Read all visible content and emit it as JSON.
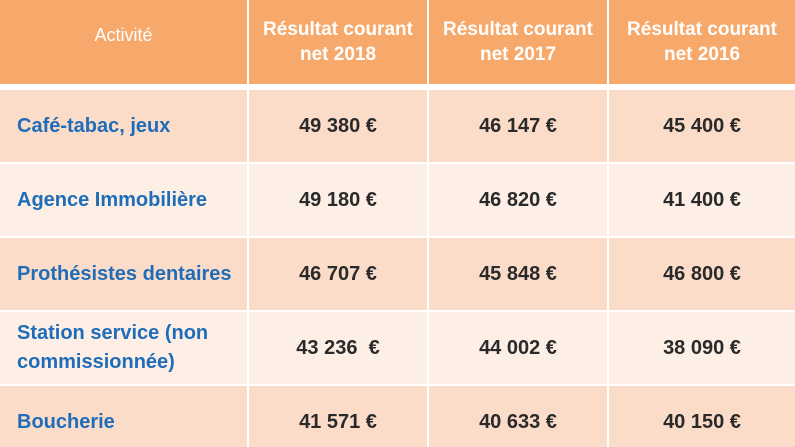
{
  "header": {
    "activity": "Activité",
    "col_2018": "Résultat courant net 2018",
    "col_2017": "Résultat courant net 2017",
    "col_2016": "Résultat courant net 2016"
  },
  "rows": [
    {
      "activity": "Café-tabac, jeux",
      "v2018": "49 380 €",
      "v2017": "46 147 €",
      "v2016": "45 400 €"
    },
    {
      "activity": "Agence Immobilière",
      "v2018": "49 180 €",
      "v2017": "46 820 €",
      "v2016": "41 400 €"
    },
    {
      "activity": "Prothésistes dentaires",
      "v2018": "46 707 €",
      "v2017": "45 848 €",
      "v2016": "46 800 €"
    },
    {
      "activity": "Station service (non commissionnée)",
      "v2018": "43 236  €",
      "v2017": "44 002 €",
      "v2016": "38 090 €"
    },
    {
      "activity": "Boucherie",
      "v2018": "41 571 €",
      "v2017": "40 633 €",
      "v2016": "40 150 €"
    }
  ]
}
